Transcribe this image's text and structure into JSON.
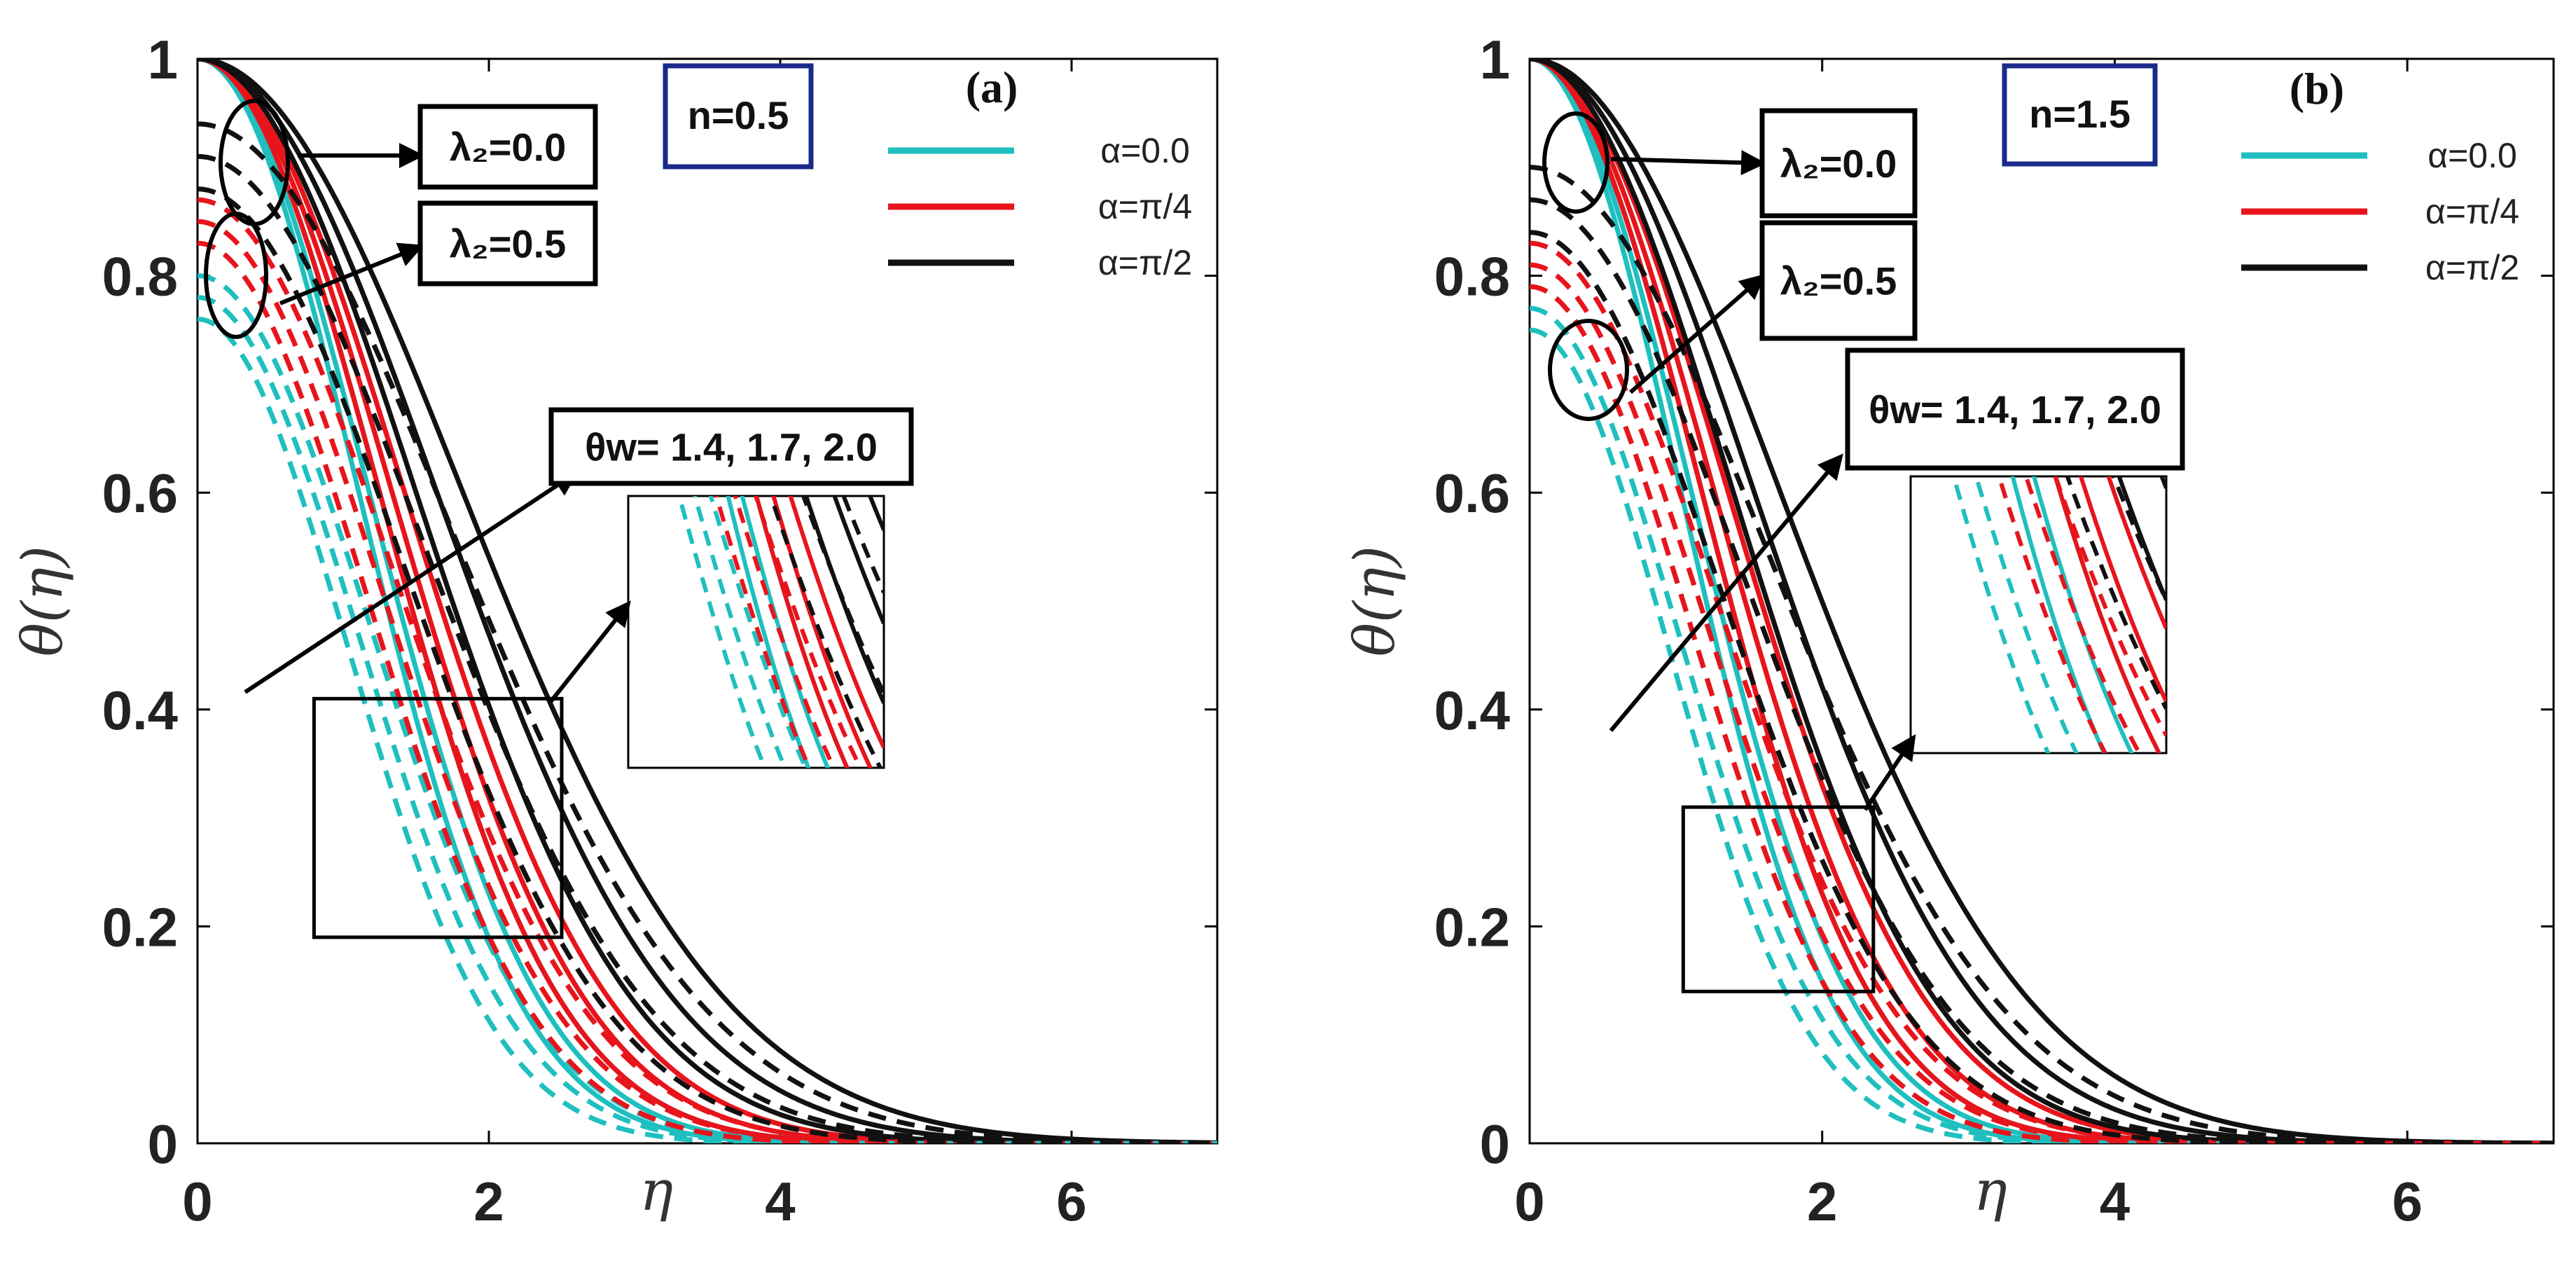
{
  "chart_data": [
    {
      "type": "line",
      "panel_label": "(a)",
      "n_label": "n=0.5",
      "n": 0.5,
      "xlabel": "η",
      "ylabel": "θ(η)",
      "xlim": [
        0,
        7
      ],
      "ylim": [
        0,
        1
      ],
      "x_ticks": [
        "0",
        "2",
        "4",
        "6"
      ],
      "y_ticks": [
        "0",
        "0.2",
        "0.4",
        "0.6",
        "0.8",
        "1"
      ],
      "legend": [
        {
          "label": "α=0.0",
          "color": "#1fbfbf"
        },
        {
          "label": "α=π/4",
          "color": "#e8141c"
        },
        {
          "label": "α=π/2",
          "color": "#111111"
        }
      ],
      "annotations": {
        "lambda_a": "λ₂=0.0",
        "lambda_b": "λ₂=0.5",
        "theta_w": "θw= 1.4, 1.7, 2.0"
      },
      "line_styles": {
        "lambda_0.0": "solid",
        "lambda_0.5": "dashed"
      },
      "theta_w_values": [
        1.4,
        1.7,
        2.0
      ],
      "series": [
        {
          "name": "α=0.0, λ₂=0.0, θw=1.4",
          "alpha": "0.0",
          "lambda2": 0.0,
          "theta_w": 1.4,
          "color": "#1fbfbf",
          "style": "solid",
          "y0": 1.0,
          "scale": 1.55,
          "p": 2.0
        },
        {
          "name": "α=0.0, λ₂=0.0, θw=1.7",
          "alpha": "0.0",
          "lambda2": 0.0,
          "theta_w": 1.7,
          "color": "#1fbfbf",
          "style": "solid",
          "y0": 1.0,
          "scale": 1.65,
          "p": 2.0
        },
        {
          "name": "α=0.0, λ₂=0.0, θw=2.0",
          "alpha": "0.0",
          "lambda2": 0.0,
          "theta_w": 2.0,
          "color": "#1fbfbf",
          "style": "solid",
          "y0": 1.0,
          "scale": 1.75,
          "p": 2.0
        },
        {
          "name": "α=π/4, λ₂=0.0, θw=1.4",
          "alpha": "π/4",
          "lambda2": 0.0,
          "theta_w": 1.4,
          "color": "#e8141c",
          "style": "solid",
          "y0": 1.0,
          "scale": 1.75,
          "p": 2.0
        },
        {
          "name": "α=π/4, λ₂=0.0, θw=1.7",
          "alpha": "π/4",
          "lambda2": 0.0,
          "theta_w": 1.7,
          "color": "#e8141c",
          "style": "solid",
          "y0": 1.0,
          "scale": 1.87,
          "p": 2.0
        },
        {
          "name": "α=π/4, λ₂=0.0, θw=2.0",
          "alpha": "π/4",
          "lambda2": 0.0,
          "theta_w": 2.0,
          "color": "#e8141c",
          "style": "solid",
          "y0": 1.0,
          "scale": 1.99,
          "p": 2.0
        },
        {
          "name": "α=π/2, λ₂=0.0, θw=1.4",
          "alpha": "π/2",
          "lambda2": 0.0,
          "theta_w": 1.4,
          "color": "#111111",
          "style": "solid",
          "y0": 1.0,
          "scale": 2.1,
          "p": 2.0
        },
        {
          "name": "α=π/2, λ₂=0.0, θw=1.7",
          "alpha": "π/2",
          "lambda2": 0.0,
          "theta_w": 1.7,
          "color": "#111111",
          "style": "solid",
          "y0": 1.0,
          "scale": 2.3,
          "p": 2.0
        },
        {
          "name": "α=π/2, λ₂=0.0, θw=2.0",
          "alpha": "π/2",
          "lambda2": 0.0,
          "theta_w": 2.0,
          "color": "#111111",
          "style": "solid",
          "y0": 1.0,
          "scale": 2.55,
          "p": 2.0
        },
        {
          "name": "α=0.0, λ₂=0.5, θw=1.4",
          "alpha": "0.0",
          "lambda2": 0.5,
          "theta_w": 1.4,
          "color": "#1fbfbf",
          "style": "dashed",
          "y0": 0.76,
          "scale": 1.45,
          "p": 2.0
        },
        {
          "name": "α=0.0, λ₂=0.5, θw=1.7",
          "alpha": "0.0",
          "lambda2": 0.5,
          "theta_w": 1.7,
          "color": "#1fbfbf",
          "style": "dashed",
          "y0": 0.78,
          "scale": 1.55,
          "p": 2.0
        },
        {
          "name": "α=0.0, λ₂=0.5, θw=2.0",
          "alpha": "0.0",
          "lambda2": 0.5,
          "theta_w": 2.0,
          "color": "#1fbfbf",
          "style": "dashed",
          "y0": 0.8,
          "scale": 1.65,
          "p": 2.0
        },
        {
          "name": "α=π/4, λ₂=0.5, θw=1.4",
          "alpha": "π/4",
          "lambda2": 0.5,
          "theta_w": 1.4,
          "color": "#e8141c",
          "style": "dashed",
          "y0": 0.83,
          "scale": 1.65,
          "p": 2.0
        },
        {
          "name": "α=π/4, λ₂=0.5, θw=1.7",
          "alpha": "π/4",
          "lambda2": 0.5,
          "theta_w": 1.7,
          "color": "#e8141c",
          "style": "dashed",
          "y0": 0.85,
          "scale": 1.77,
          "p": 2.0
        },
        {
          "name": "α=π/4, λ₂=0.5, θw=2.0",
          "alpha": "π/4",
          "lambda2": 0.5,
          "theta_w": 2.0,
          "color": "#e8141c",
          "style": "dashed",
          "y0": 0.87,
          "scale": 1.9,
          "p": 2.0
        },
        {
          "name": "α=π/2, λ₂=0.5, θw=1.4",
          "alpha": "π/2",
          "lambda2": 0.5,
          "theta_w": 1.4,
          "color": "#111111",
          "style": "dashed",
          "y0": 0.88,
          "scale": 2.0,
          "p": 2.0
        },
        {
          "name": "α=π/2, λ₂=0.5, θw=1.7",
          "alpha": "π/2",
          "lambda2": 0.5,
          "theta_w": 1.7,
          "color": "#111111",
          "style": "dashed",
          "y0": 0.91,
          "scale": 2.2,
          "p": 2.0
        },
        {
          "name": "α=π/2, λ₂=0.5, θw=2.0",
          "alpha": "π/2",
          "lambda2": 0.5,
          "theta_w": 2.0,
          "color": "#111111",
          "style": "dashed",
          "y0": 0.94,
          "scale": 2.45,
          "p": 2.0
        }
      ],
      "zoom_region": {
        "x": [
          0.8,
          2.5
        ],
        "y": [
          0.19,
          0.41
        ]
      }
    },
    {
      "type": "line",
      "panel_label": "(b)",
      "n_label": "n=1.5",
      "n": 1.5,
      "xlabel": "η",
      "ylabel": "θ(η)",
      "xlim": [
        0,
        7
      ],
      "ylim": [
        0,
        1
      ],
      "x_ticks": [
        "0",
        "2",
        "4",
        "6"
      ],
      "y_ticks": [
        "0",
        "0.2",
        "0.4",
        "0.6",
        "0.8",
        "1"
      ],
      "legend": [
        {
          "label": "α=0.0",
          "color": "#1fbfbf"
        },
        {
          "label": "α=π/4",
          "color": "#e8141c"
        },
        {
          "label": "α=π/2",
          "color": "#111111"
        }
      ],
      "annotations": {
        "lambda_a": "λ₂=0.0",
        "lambda_b": "λ₂=0.5",
        "theta_w": "θw= 1.4, 1.7, 2.0"
      },
      "line_styles": {
        "lambda_0.0": "solid",
        "lambda_0.5": "dashed"
      },
      "theta_w_values": [
        1.4,
        1.7,
        2.0
      ],
      "series": [
        {
          "name": "α=0.0, λ₂=0.0, θw=1.4",
          "alpha": "0.0",
          "lambda2": 0.0,
          "theta_w": 1.4,
          "color": "#1fbfbf",
          "style": "solid",
          "y0": 1.0,
          "scale": 1.45,
          "p": 2.0
        },
        {
          "name": "α=0.0, λ₂=0.0, θw=1.7",
          "alpha": "0.0",
          "lambda2": 0.0,
          "theta_w": 1.7,
          "color": "#1fbfbf",
          "style": "solid",
          "y0": 1.0,
          "scale": 1.55,
          "p": 2.0
        },
        {
          "name": "α=0.0, λ₂=0.0, θw=2.0",
          "alpha": "0.0",
          "lambda2": 0.0,
          "theta_w": 2.0,
          "color": "#1fbfbf",
          "style": "solid",
          "y0": 1.0,
          "scale": 1.65,
          "p": 2.0
        },
        {
          "name": "α=π/4, λ₂=0.0, θw=1.4",
          "alpha": "π/4",
          "lambda2": 0.0,
          "theta_w": 1.4,
          "color": "#e8141c",
          "style": "solid",
          "y0": 1.0,
          "scale": 1.65,
          "p": 2.0
        },
        {
          "name": "α=π/4, λ₂=0.0, θw=1.7",
          "alpha": "π/4",
          "lambda2": 0.0,
          "theta_w": 1.7,
          "color": "#e8141c",
          "style": "solid",
          "y0": 1.0,
          "scale": 1.77,
          "p": 2.0
        },
        {
          "name": "α=π/4, λ₂=0.0, θw=2.0",
          "alpha": "π/4",
          "lambda2": 0.0,
          "theta_w": 2.0,
          "color": "#e8141c",
          "style": "solid",
          "y0": 1.0,
          "scale": 1.9,
          "p": 2.0
        },
        {
          "name": "α=π/2, λ₂=0.0, θw=1.4",
          "alpha": "π/2",
          "lambda2": 0.0,
          "theta_w": 1.4,
          "color": "#111111",
          "style": "solid",
          "y0": 1.0,
          "scale": 1.95,
          "p": 2.0
        },
        {
          "name": "α=π/2, λ₂=0.0, θw=1.7",
          "alpha": "π/2",
          "lambda2": 0.0,
          "theta_w": 1.7,
          "color": "#111111",
          "style": "solid",
          "y0": 1.0,
          "scale": 2.15,
          "p": 2.0
        },
        {
          "name": "α=π/2, λ₂=0.0, θw=2.0",
          "alpha": "π/2",
          "lambda2": 0.0,
          "theta_w": 2.0,
          "color": "#111111",
          "style": "solid",
          "y0": 1.0,
          "scale": 2.4,
          "p": 2.0
        },
        {
          "name": "α=0.0, λ₂=0.5, θw=1.4",
          "alpha": "0.0",
          "lambda2": 0.5,
          "theta_w": 1.4,
          "color": "#1fbfbf",
          "style": "dashed",
          "y0": 0.75,
          "scale": 1.35,
          "p": 2.0
        },
        {
          "name": "α=0.0, λ₂=0.5, θw=1.7",
          "alpha": "0.0",
          "lambda2": 0.5,
          "theta_w": 1.7,
          "color": "#1fbfbf",
          "style": "dashed",
          "y0": 0.77,
          "scale": 1.45,
          "p": 2.0
        },
        {
          "name": "α=0.0, λ₂=0.5, θw=2.0",
          "alpha": "0.0",
          "lambda2": 0.5,
          "theta_w": 2.0,
          "color": "#1fbfbf",
          "style": "dashed",
          "y0": 0.79,
          "scale": 1.55,
          "p": 2.0
        },
        {
          "name": "α=π/4, λ₂=0.5, θw=1.4",
          "alpha": "π/4",
          "lambda2": 0.5,
          "theta_w": 1.4,
          "color": "#e8141c",
          "style": "dashed",
          "y0": 0.79,
          "scale": 1.55,
          "p": 2.0
        },
        {
          "name": "α=π/4, λ₂=0.5, θw=1.7",
          "alpha": "π/4",
          "lambda2": 0.5,
          "theta_w": 1.7,
          "color": "#e8141c",
          "style": "dashed",
          "y0": 0.81,
          "scale": 1.67,
          "p": 2.0
        },
        {
          "name": "α=π/4, λ₂=0.5, θw=2.0",
          "alpha": "π/4",
          "lambda2": 0.5,
          "theta_w": 2.0,
          "color": "#e8141c",
          "style": "dashed",
          "y0": 0.83,
          "scale": 1.8,
          "p": 2.0
        },
        {
          "name": "α=π/2, λ₂=0.5, θw=1.4",
          "alpha": "π/2",
          "lambda2": 0.5,
          "theta_w": 1.4,
          "color": "#111111",
          "style": "dashed",
          "y0": 0.84,
          "scale": 1.85,
          "p": 2.0
        },
        {
          "name": "α=π/2, λ₂=0.5, θw=1.7",
          "alpha": "π/2",
          "lambda2": 0.5,
          "theta_w": 1.7,
          "color": "#111111",
          "style": "dashed",
          "y0": 0.87,
          "scale": 2.05,
          "p": 2.0
        },
        {
          "name": "α=π/2, λ₂=0.5, θw=2.0",
          "alpha": "π/2",
          "lambda2": 0.5,
          "theta_w": 2.0,
          "color": "#111111",
          "style": "dashed",
          "y0": 0.9,
          "scale": 2.3,
          "p": 2.0
        }
      ],
      "zoom_region": {
        "x": [
          1.05,
          2.35
        ],
        "y": [
          0.14,
          0.31
        ]
      }
    }
  ]
}
